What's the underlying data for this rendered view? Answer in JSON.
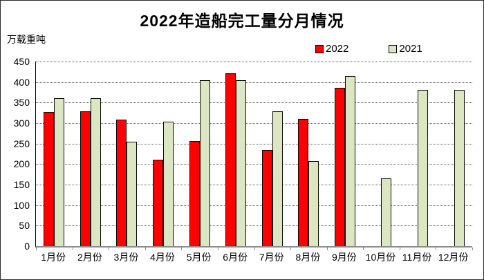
{
  "chart_data": {
    "type": "bar",
    "title": "2022年造船完工量分月情况",
    "unit_label": "万载重吨",
    "categories": [
      "1月份",
      "2月份",
      "3月份",
      "4月份",
      "5月份",
      "6月份",
      "7月份",
      "8月份",
      "9月份",
      "10月份",
      "11月份",
      "12月份"
    ],
    "series": [
      {
        "name": "2022",
        "color": "#FF0000",
        "values": [
          327,
          328,
          309,
          210,
          256,
          422,
          234,
          310,
          386,
          null,
          null,
          null
        ]
      },
      {
        "name": "2021",
        "color": "#DCE6C2",
        "values": [
          361,
          361,
          255,
          303,
          405,
          405,
          328,
          208,
          415,
          165,
          381,
          381
        ]
      }
    ],
    "ylim": [
      0,
      450
    ],
    "ytick_step": 50,
    "grid": "horizontal-dotted",
    "legend_position": "top-right",
    "xlabel": "",
    "ylabel": "万载重吨"
  },
  "colors": {
    "axis": "#8c8c8c",
    "gridline": "#595959",
    "outer_border": "#2b2b2b",
    "background": "#ffffff",
    "bar_border": "#0a0a0a"
  }
}
